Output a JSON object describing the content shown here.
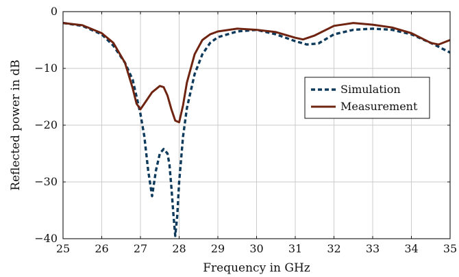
{
  "chart_data": {
    "type": "line",
    "xlabel": "Frequency in GHz",
    "ylabel": "Reflected power in dB",
    "xlim": [
      25,
      35
    ],
    "ylim": [
      -40,
      0
    ],
    "xticks": [
      25,
      26,
      27,
      28,
      29,
      30,
      31,
      32,
      33,
      34,
      35
    ],
    "yticks": [
      0,
      -10,
      -20,
      -30,
      -40
    ],
    "xtick_labels": [
      "25",
      "26",
      "27",
      "28",
      "29",
      "30",
      "31",
      "32",
      "33",
      "34",
      "35"
    ],
    "ytick_labels": [
      "0",
      "−10",
      "−20",
      "−30",
      "−40"
    ],
    "grid": true,
    "legend_position": "right",
    "series": [
      {
        "name": "Simulation",
        "color": "#0e3a5c",
        "style": "dashed",
        "x": [
          25,
          25.5,
          26,
          26.3,
          26.6,
          26.8,
          27.0,
          27.1,
          27.2,
          27.3,
          27.4,
          27.5,
          27.6,
          27.7,
          27.75,
          27.8,
          27.85,
          27.9,
          27.95,
          28.0,
          28.1,
          28.2,
          28.4,
          28.6,
          28.8,
          29.0,
          29.5,
          30.0,
          30.5,
          31.0,
          31.3,
          31.6,
          32.0,
          32.5,
          33.0,
          33.5,
          34.0,
          34.5,
          35.0
        ],
        "y": [
          -2.0,
          -2.5,
          -4.0,
          -6.0,
          -9.0,
          -12.0,
          -18.0,
          -22.0,
          -28.0,
          -32.5,
          -28.0,
          -25.0,
          -24.2,
          -25.0,
          -27.0,
          -31.0,
          -35.5,
          -39.5,
          -36.0,
          -30.0,
          -22.0,
          -17.0,
          -11.0,
          -7.5,
          -5.5,
          -4.5,
          -3.5,
          -3.2,
          -4.0,
          -5.2,
          -5.8,
          -5.6,
          -4.0,
          -3.2,
          -3.0,
          -3.2,
          -4.0,
          -5.5,
          -7.2
        ]
      },
      {
        "name": "Measurement",
        "color": "#6e2410",
        "style": "solid",
        "x": [
          25,
          25.5,
          26,
          26.3,
          26.6,
          26.8,
          26.9,
          27.0,
          27.1,
          27.3,
          27.5,
          27.6,
          27.7,
          27.8,
          27.9,
          28.0,
          28.1,
          28.2,
          28.4,
          28.6,
          28.8,
          29.0,
          29.5,
          30.0,
          30.5,
          31.0,
          31.2,
          31.5,
          32.0,
          32.5,
          33.0,
          33.5,
          34.0,
          34.5,
          34.7,
          35.0
        ],
        "y": [
          -2.0,
          -2.4,
          -3.8,
          -5.5,
          -9.0,
          -13.5,
          -16.2,
          -17.2,
          -16.2,
          -14.2,
          -13.1,
          -13.3,
          -14.8,
          -17.2,
          -19.2,
          -19.5,
          -16.5,
          -12.5,
          -7.5,
          -5.0,
          -4.0,
          -3.5,
          -3.0,
          -3.2,
          -3.6,
          -4.6,
          -4.9,
          -4.2,
          -2.5,
          -2.0,
          -2.3,
          -2.8,
          -3.8,
          -5.5,
          -5.8,
          -5.0
        ]
      }
    ]
  }
}
